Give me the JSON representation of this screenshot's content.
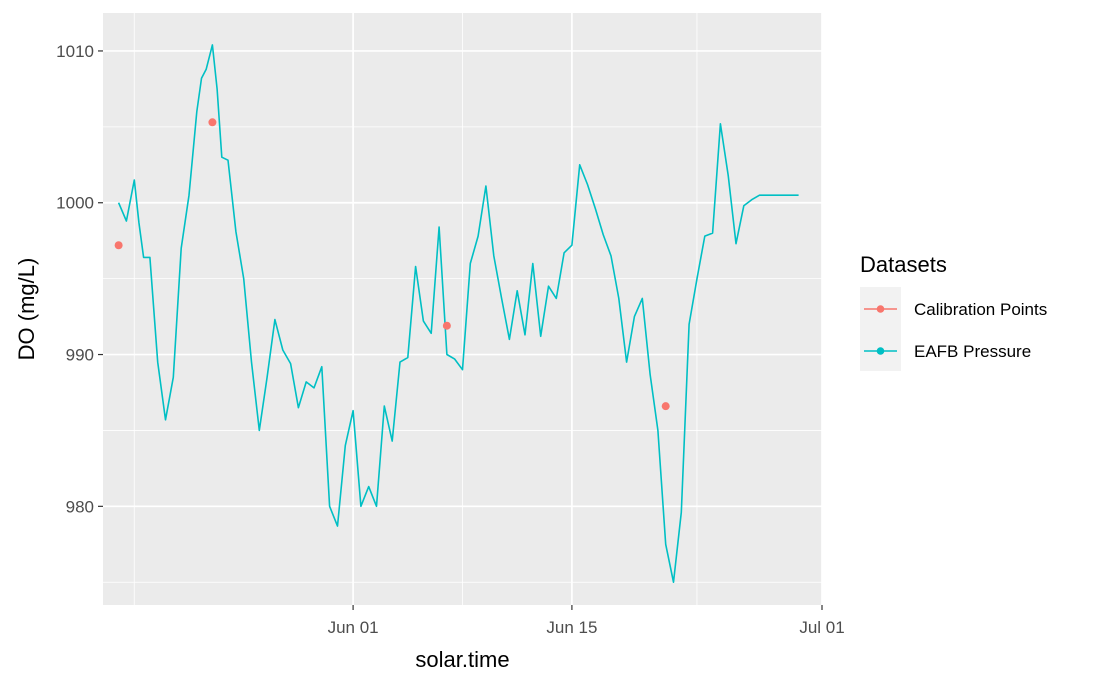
{
  "chart_data": {
    "type": "line",
    "xlabel": "solar.time",
    "ylabel": "DO (mg/L)",
    "x_ticks": [
      "Jun 01",
      "Jun 15",
      "Jul 01"
    ],
    "y_ticks": [
      980,
      990,
      1000,
      1010
    ],
    "xlim": [
      "2023-05-16",
      "2023-07-01"
    ],
    "ylim": [
      973.5,
      1012.5
    ],
    "grid": true,
    "legend": {
      "title": "Datasets",
      "placement": "right",
      "entries": [
        {
          "label": "Calibration Points",
          "color": "#F8766D"
        },
        {
          "label": "EAFB Pressure",
          "color": "#00BFC4"
        }
      ]
    },
    "series": [
      {
        "name": "Calibration Points",
        "kind": "points",
        "color": "#F8766D",
        "x": [
          "2023-05-17",
          "2023-05-23",
          "2023-06-07",
          "2023-06-21"
        ],
        "values": [
          997.2,
          1005.3,
          991.9,
          986.6
        ]
      },
      {
        "name": "EAFB Pressure",
        "kind": "line",
        "color": "#00BFC4",
        "x": [
          "2023-05-17",
          "2023-05-17.5",
          "2023-05-18",
          "2023-05-18.3",
          "2023-05-18.6",
          "2023-05-19",
          "2023-05-19.5",
          "2023-05-20",
          "2023-05-20.5",
          "2023-05-21",
          "2023-05-21.5",
          "2023-05-22",
          "2023-05-22.3",
          "2023-05-22.6",
          "2023-05-23",
          "2023-05-23.3",
          "2023-05-23.6",
          "2023-05-24",
          "2023-05-24.5",
          "2023-05-25",
          "2023-05-25.5",
          "2023-05-26",
          "2023-05-26.5",
          "2023-05-27",
          "2023-05-27.5",
          "2023-05-28",
          "2023-05-28.5",
          "2023-05-29",
          "2023-05-29.5",
          "2023-05-30",
          "2023-05-30.5",
          "2023-05-31",
          "2023-05-31.5",
          "2023-06-01",
          "2023-06-01.5",
          "2023-06-02",
          "2023-06-02.5",
          "2023-06-03",
          "2023-06-03.5",
          "2023-06-04",
          "2023-06-04.5",
          "2023-06-05",
          "2023-06-05.5",
          "2023-06-06",
          "2023-06-06.5",
          "2023-06-07",
          "2023-06-07.5",
          "2023-06-08",
          "2023-06-08.5",
          "2023-06-09",
          "2023-06-09.5",
          "2023-06-10",
          "2023-06-10.5",
          "2023-06-11",
          "2023-06-11.5",
          "2023-06-12",
          "2023-06-12.5",
          "2023-06-13",
          "2023-06-13.5",
          "2023-06-14",
          "2023-06-14.5",
          "2023-06-15",
          "2023-06-15.5",
          "2023-06-16",
          "2023-06-16.5",
          "2023-06-17",
          "2023-06-17.5",
          "2023-06-18",
          "2023-06-18.5",
          "2023-06-19",
          "2023-06-19.5",
          "2023-06-20",
          "2023-06-20.5",
          "2023-06-21",
          "2023-06-21.5",
          "2023-06-22",
          "2023-06-22.5",
          "2023-06-23",
          "2023-06-23.5",
          "2023-06-24",
          "2023-06-24.5",
          "2023-06-25",
          "2023-06-25.5",
          "2023-06-26",
          "2023-06-26.5",
          "2023-06-27",
          "2023-06-27.5",
          "2023-06-28",
          "2023-06-28.5",
          "2023-06-29",
          "2023-06-29.5"
        ],
        "values": [
          1000,
          998.8,
          1001.5,
          998.7,
          996.4,
          996.4,
          989.5,
          985.7,
          988.5,
          997.0,
          1000.5,
          1006.0,
          1008.2,
          1008.8,
          1010.4,
          1007.5,
          1003.0,
          1002.8,
          998.1,
          995.0,
          989.5,
          985.0,
          988.5,
          992.3,
          990.3,
          989.4,
          986.5,
          988.2,
          987.8,
          989.2,
          980.0,
          978.7,
          984.0,
          986.3,
          980.0,
          981.3,
          980.0,
          986.6,
          984.3,
          989.5,
          989.8,
          995.8,
          992.2,
          991.4,
          998.4,
          990.0,
          989.7,
          989.0,
          996.0,
          997.8,
          1001.1,
          996.5,
          993.7,
          991.0,
          994.2,
          991.3,
          996.0,
          991.2,
          994.5,
          993.7,
          996.7,
          997.2,
          1002.5,
          1001.2,
          999.6,
          997.9,
          996.5,
          993.7,
          989.5,
          992.5,
          993.7,
          988.7,
          985.0,
          977.5,
          975.0,
          979.6,
          992.0,
          995.0,
          997.8,
          998.0,
          1005.2,
          1001.8,
          997.3,
          999.8,
          1000.2,
          1000.5,
          1000.5,
          1000.5,
          1000.5,
          1000.5,
          1000.5
        ]
      }
    ]
  }
}
